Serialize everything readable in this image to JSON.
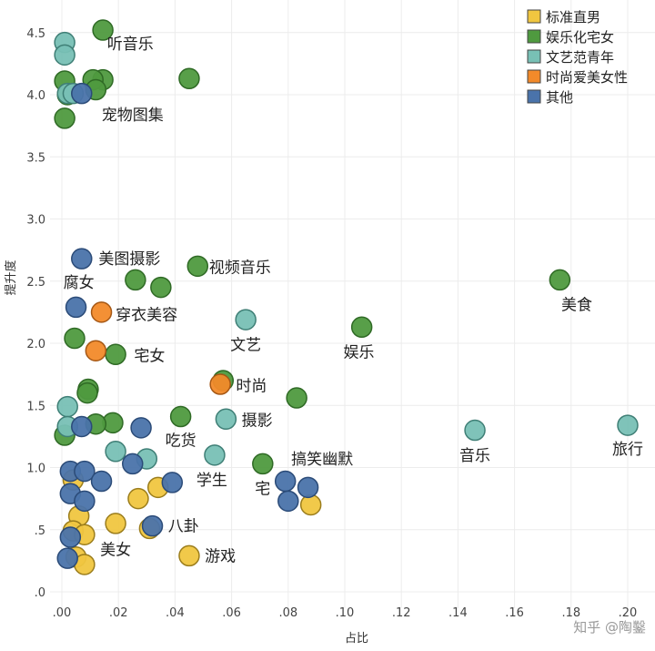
{
  "chart_data": {
    "type": "scatter",
    "title": "",
    "xlabel": "占比",
    "ylabel": "提升度",
    "xlim": [
      -0.002,
      0.203
    ],
    "ylim": [
      -0.05,
      4.75
    ],
    "grid": true,
    "legend_position": "top-right",
    "x_ticks": [
      0,
      0.02,
      0.04,
      0.06,
      0.08,
      0.1,
      0.12,
      0.14,
      0.16,
      0.18,
      0.2
    ],
    "x_tick_labels": [
      ".00",
      ".02",
      ".04",
      ".06",
      ".08",
      ".10",
      ".12",
      ".14",
      ".16",
      ".18",
      ".20"
    ],
    "y_ticks": [
      0,
      0.5,
      1.0,
      1.5,
      2.0,
      2.5,
      3.0,
      3.5,
      4.0,
      4.5
    ],
    "y_tick_labels": [
      ".0",
      ".5",
      "1.0",
      "1.5",
      "2.0",
      "2.5",
      "3.0",
      "3.5",
      "4.0",
      "4.5"
    ],
    "series": [
      {
        "name": "标准直男",
        "color": "#f0c640",
        "stroke": "#9b7d1c",
        "points": [
          [
            0.004,
            0.9
          ],
          [
            0.006,
            0.61
          ],
          [
            0.004,
            0.49
          ],
          [
            0.008,
            0.46
          ],
          [
            0.019,
            0.55
          ],
          [
            0.027,
            0.75
          ],
          [
            0.034,
            0.84
          ],
          [
            0.031,
            0.51
          ],
          [
            0.045,
            0.29
          ],
          [
            0.005,
            0.28
          ],
          [
            0.008,
            0.22
          ],
          [
            0.088,
            0.7
          ]
        ]
      },
      {
        "name": "娱乐化宅女",
        "color": "#4f9a3f",
        "stroke": "#2f6a25",
        "points": [
          [
            0.0145,
            4.52
          ],
          [
            0.0145,
            4.12
          ],
          [
            0.011,
            4.12
          ],
          [
            0.012,
            4.04
          ],
          [
            0.045,
            4.13
          ],
          [
            0.001,
            4.11
          ],
          [
            0.001,
            3.81
          ],
          [
            0.002,
            4.0
          ],
          [
            0.048,
            2.62
          ],
          [
            0.026,
            2.51
          ],
          [
            0.035,
            2.45
          ],
          [
            0.176,
            2.51
          ],
          [
            0.106,
            2.13
          ],
          [
            0.0045,
            2.04
          ],
          [
            0.019,
            1.91
          ],
          [
            0.057,
            1.7
          ],
          [
            0.0093,
            1.63
          ],
          [
            0.009,
            1.6
          ],
          [
            0.083,
            1.56
          ],
          [
            0.042,
            1.41
          ],
          [
            0.018,
            1.36
          ],
          [
            0.012,
            1.35
          ],
          [
            0.001,
            1.26
          ],
          [
            0.071,
            1.03
          ]
        ]
      },
      {
        "name": "文艺范青年",
        "color": "#78c0b5",
        "stroke": "#3f7f76",
        "points": [
          [
            0.001,
            4.42
          ],
          [
            0.001,
            4.32
          ],
          [
            0.002,
            4.01
          ],
          [
            0.004,
            4.01
          ],
          [
            0.065,
            2.19
          ],
          [
            0.002,
            1.49
          ],
          [
            0.002,
            1.33
          ],
          [
            0.019,
            1.13
          ],
          [
            0.03,
            1.07
          ],
          [
            0.054,
            1.1
          ],
          [
            0.058,
            1.39
          ],
          [
            0.146,
            1.3
          ],
          [
            0.2,
            1.34
          ]
        ]
      },
      {
        "name": "时尚爱美女性",
        "color": "#f28a2a",
        "stroke": "#a55714",
        "points": [
          [
            0.014,
            2.25
          ],
          [
            0.012,
            1.94
          ],
          [
            0.056,
            1.67
          ]
        ]
      },
      {
        "name": "其他",
        "color": "#4a73aa",
        "stroke": "#2b4b78",
        "points": [
          [
            0.007,
            4.01
          ],
          [
            0.007,
            2.68
          ],
          [
            0.005,
            2.29
          ],
          [
            0.007,
            1.33
          ],
          [
            0.028,
            1.32
          ],
          [
            0.003,
            0.97
          ],
          [
            0.008,
            0.97
          ],
          [
            0.014,
            0.89
          ],
          [
            0.003,
            0.79
          ],
          [
            0.008,
            0.73
          ],
          [
            0.025,
            1.03
          ],
          [
            0.039,
            0.88
          ],
          [
            0.032,
            0.53
          ],
          [
            0.002,
            0.27
          ],
          [
            0.003,
            0.44
          ],
          [
            0.079,
            0.89
          ],
          [
            0.087,
            0.84
          ],
          [
            0.08,
            0.73
          ]
        ]
      }
    ],
    "annotations": [
      {
        "text": "听音乐",
        "x": 0.016,
        "y": 4.41,
        "anchor": "start"
      },
      {
        "text": "宠物图集",
        "x": 0.025,
        "y": 3.84,
        "anchor": "middle"
      },
      {
        "text": "美图摄影",
        "x": 0.013,
        "y": 2.68,
        "anchor": "start"
      },
      {
        "text": "腐女",
        "x": 0.006,
        "y": 2.49,
        "anchor": "middle"
      },
      {
        "text": "视频音乐",
        "x": 0.052,
        "y": 2.61,
        "anchor": "start"
      },
      {
        "text": "穿衣美容",
        "x": 0.019,
        "y": 2.23,
        "anchor": "start"
      },
      {
        "text": "美食",
        "x": 0.182,
        "y": 2.31,
        "anchor": "middle"
      },
      {
        "text": "文艺",
        "x": 0.065,
        "y": 1.99,
        "anchor": "middle"
      },
      {
        "text": "娱乐",
        "x": 0.105,
        "y": 1.93,
        "anchor": "middle"
      },
      {
        "text": "宅女",
        "x": 0.031,
        "y": 1.9,
        "anchor": "middle"
      },
      {
        "text": "时尚",
        "x": 0.067,
        "y": 1.66,
        "anchor": "middle"
      },
      {
        "text": "摄影",
        "x": 0.069,
        "y": 1.38,
        "anchor": "middle"
      },
      {
        "text": "吃货",
        "x": 0.042,
        "y": 1.22,
        "anchor": "middle"
      },
      {
        "text": "搞笑幽默",
        "x": 0.092,
        "y": 1.07,
        "anchor": "middle"
      },
      {
        "text": "音乐",
        "x": 0.146,
        "y": 1.1,
        "anchor": "middle"
      },
      {
        "text": "旅行",
        "x": 0.2,
        "y": 1.15,
        "anchor": "middle"
      },
      {
        "text": "学生",
        "x": 0.053,
        "y": 0.9,
        "anchor": "middle"
      },
      {
        "text": "宅",
        "x": 0.071,
        "y": 0.83,
        "anchor": "middle"
      },
      {
        "text": "八卦",
        "x": 0.043,
        "y": 0.53,
        "anchor": "middle"
      },
      {
        "text": "美女",
        "x": 0.019,
        "y": 0.34,
        "anchor": "middle"
      },
      {
        "text": "游戏",
        "x": 0.056,
        "y": 0.29,
        "anchor": "middle"
      }
    ]
  },
  "watermark": "知乎 @陶鑿"
}
